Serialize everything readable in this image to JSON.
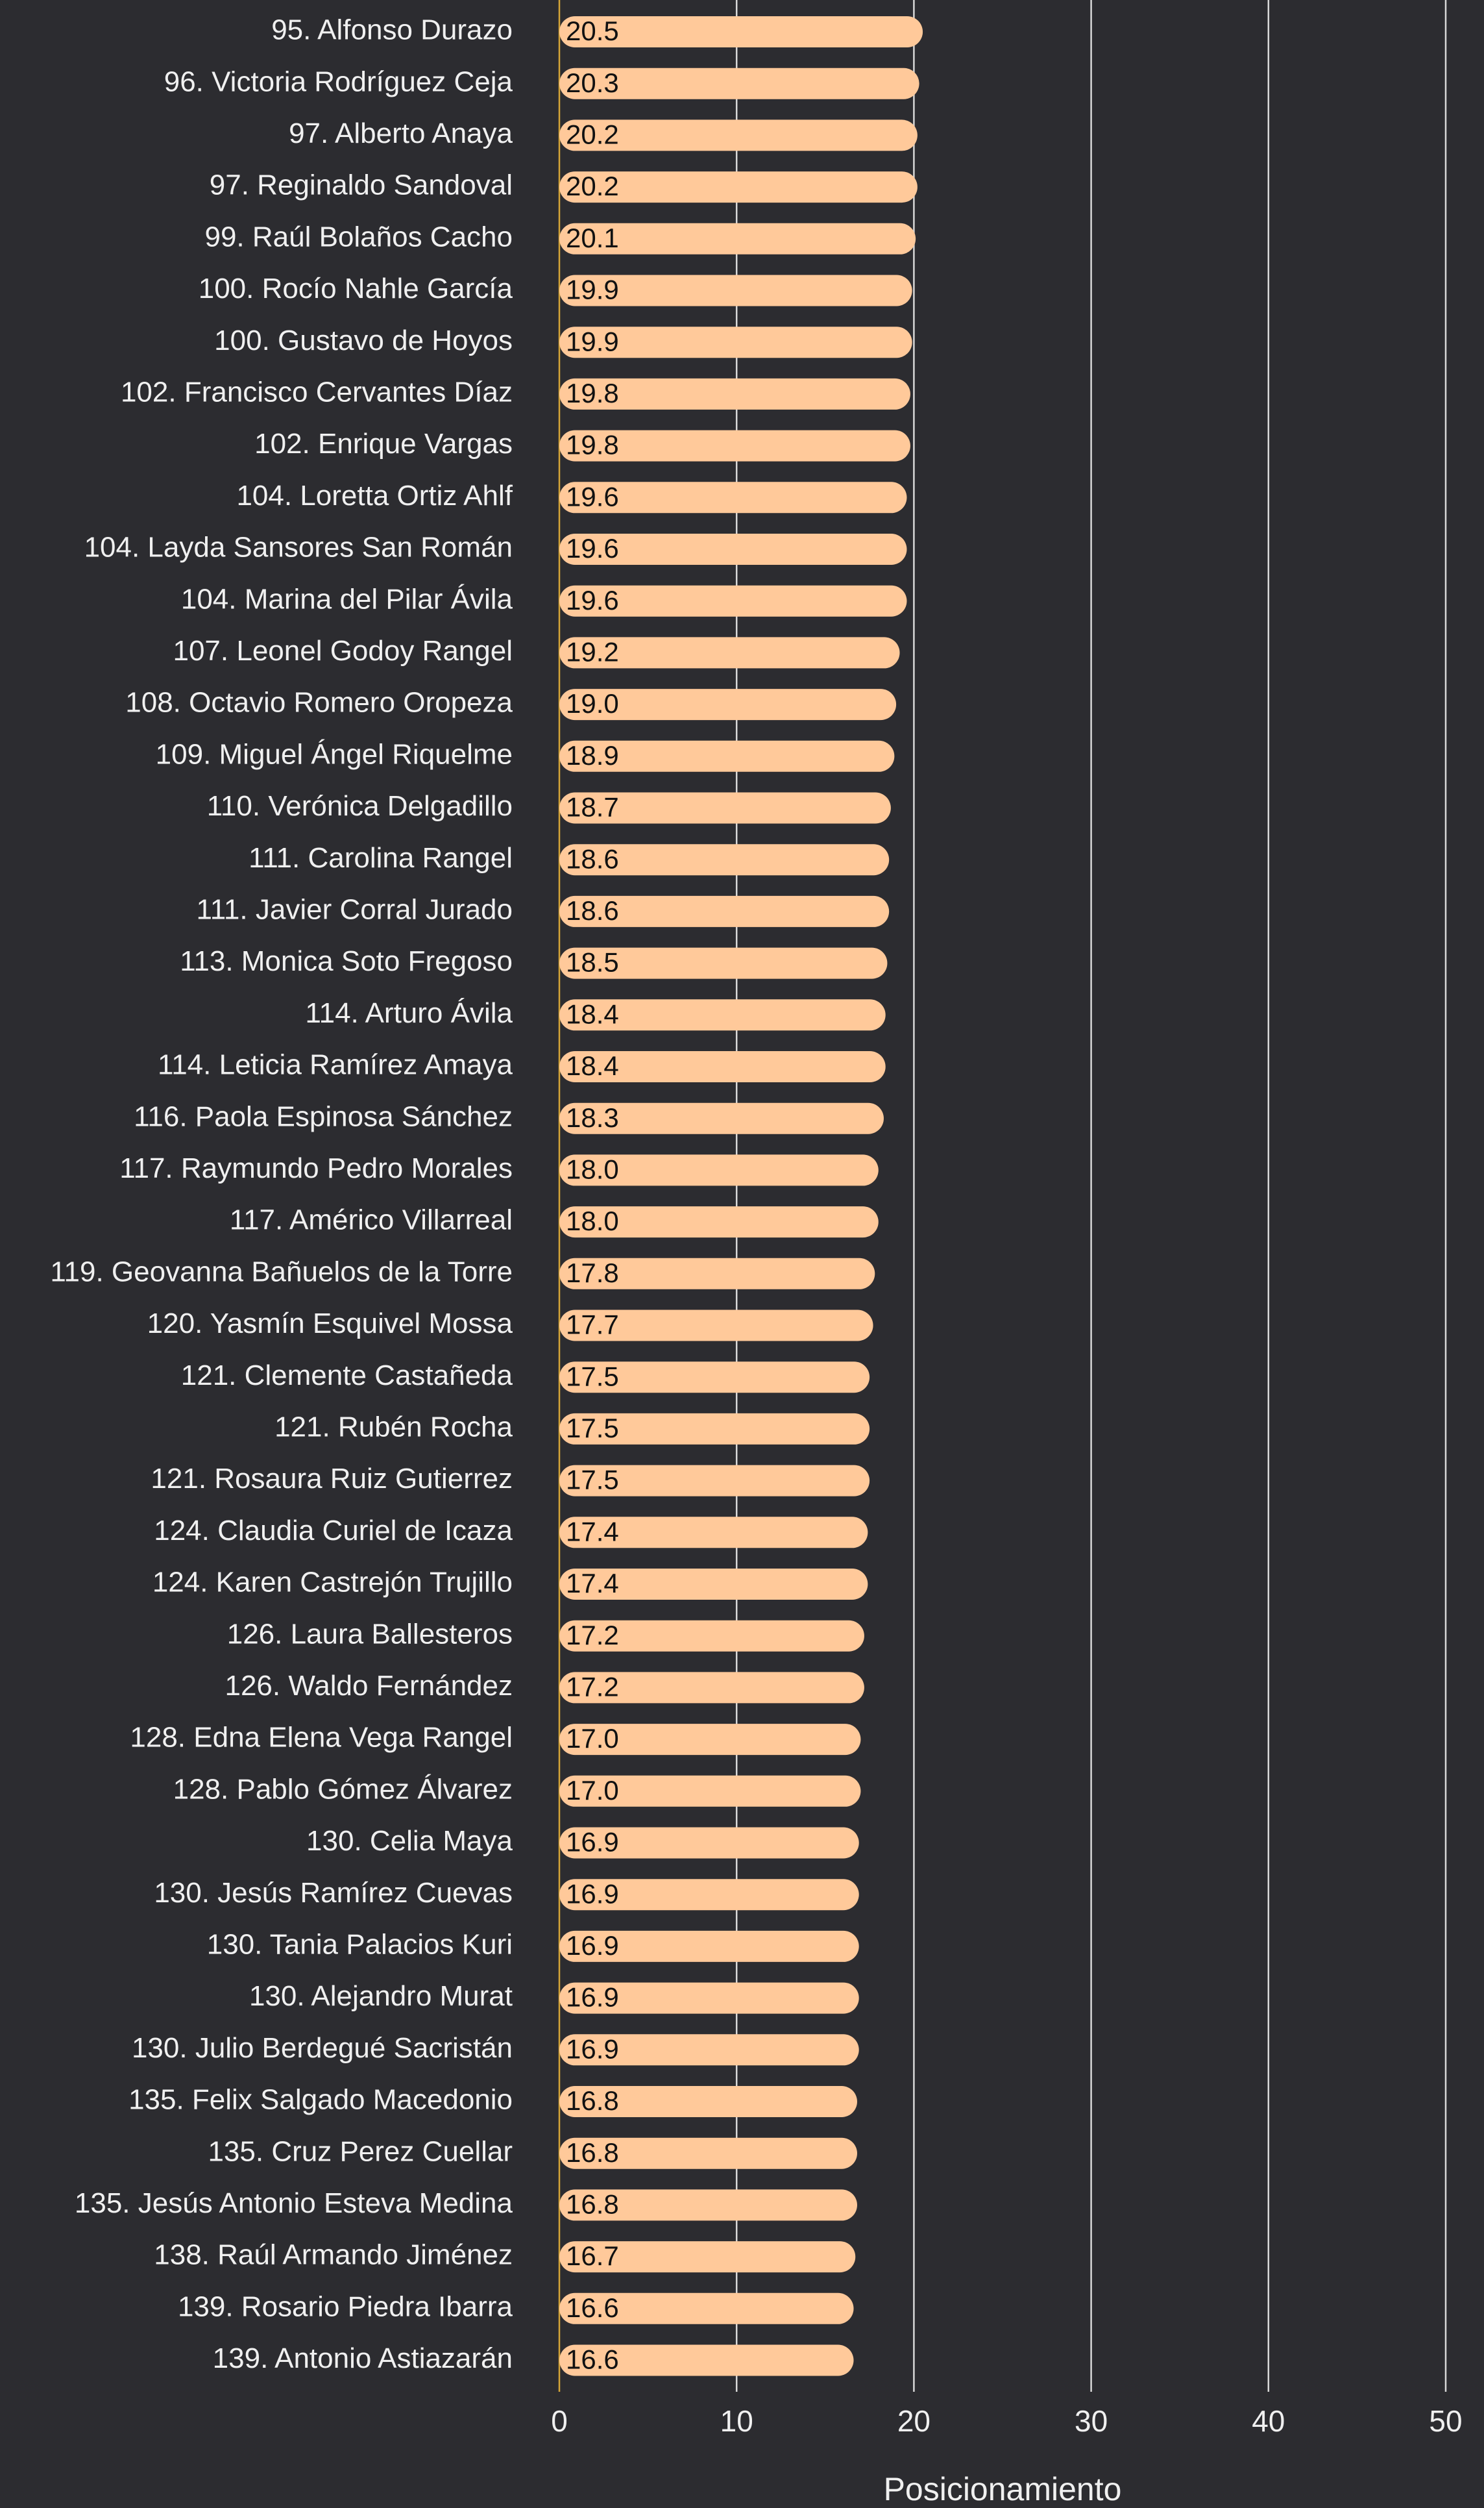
{
  "chart_data": {
    "type": "barh",
    "categories": [
      "95. Alfonso Durazo",
      "96. Victoria Rodríguez Ceja",
      "97. Alberto Anaya",
      "97. Reginaldo Sandoval",
      "99. Raúl Bolaños Cacho",
      "100. Rocío Nahle García",
      "100. Gustavo de Hoyos",
      "102. Francisco Cervantes Díaz",
      "102. Enrique Vargas",
      "104. Loretta Ortiz Ahlf",
      "104. Layda Sansores San Román",
      "104. Marina del Pilar Ávila",
      "107. Leonel Godoy Rangel",
      "108. Octavio Romero Oropeza",
      "109. Miguel Ángel Riquelme",
      "110. Verónica Delgadillo",
      "111. Carolina Rangel",
      "111. Javier Corral Jurado",
      "113. Monica Soto Fregoso",
      "114. Arturo Ávila",
      "114. Leticia Ramírez Amaya",
      "116. Paola Espinosa Sánchez",
      "117. Raymundo Pedro Morales",
      "117. Américo Villarreal",
      "119. Geovanna Bañuelos de la Torre",
      "120. Yasmín Esquivel Mossa",
      "121. Clemente Castañeda",
      "121. Rubén Rocha",
      "121. Rosaura Ruiz Gutierrez",
      "124. Claudia Curiel de Icaza",
      "124. Karen Castrejón Trujillo",
      "126. Laura Ballesteros",
      "126. Waldo Fernández",
      "128. Edna Elena Vega Rangel",
      "128. Pablo Gómez Álvarez",
      "130. Celia Maya",
      "130. Jesús Ramírez Cuevas",
      "130. Tania Palacios Kuri",
      "130. Alejandro Murat",
      "130. Julio Berdegué Sacristán",
      "135. Felix Salgado Macedonio",
      "135. Cruz Perez Cuellar",
      "135. Jesús Antonio Esteva Medina",
      "138. Raúl Armando Jiménez",
      "139. Rosario Piedra Ibarra",
      "139. Antonio Astiazarán"
    ],
    "values": [
      20.5,
      20.3,
      20.2,
      20.2,
      20.1,
      19.9,
      19.9,
      19.8,
      19.8,
      19.6,
      19.6,
      19.6,
      19.2,
      19.0,
      18.9,
      18.7,
      18.6,
      18.6,
      18.5,
      18.4,
      18.4,
      18.3,
      18.0,
      18.0,
      17.8,
      17.7,
      17.5,
      17.5,
      17.5,
      17.4,
      17.4,
      17.2,
      17.2,
      17.0,
      17.0,
      16.9,
      16.9,
      16.9,
      16.9,
      16.9,
      16.8,
      16.8,
      16.8,
      16.7,
      16.6,
      16.6
    ],
    "value_labels": [
      "20.5",
      "20.3",
      "20.2",
      "20.2",
      "20.1",
      "19.9",
      "19.9",
      "19.8",
      "19.8",
      "19.6",
      "19.6",
      "19.6",
      "19.2",
      "19.0",
      "18.9",
      "18.7",
      "18.6",
      "18.6",
      "18.5",
      "18.4",
      "18.4",
      "18.3",
      "18.0",
      "18.0",
      "17.8",
      "17.7",
      "17.5",
      "17.5",
      "17.5",
      "17.4",
      "17.4",
      "17.2",
      "17.2",
      "17.0",
      "17.0",
      "16.9",
      "16.9",
      "16.9",
      "16.9",
      "16.9",
      "16.8",
      "16.8",
      "16.8",
      "16.7",
      "16.6",
      "16.6"
    ],
    "color": "#ffc99a",
    "xlabel": "Posicionamiento",
    "xlim": [
      0,
      50
    ],
    "xticks": [
      0,
      10,
      20,
      30,
      40,
      50
    ],
    "grid": true
  }
}
